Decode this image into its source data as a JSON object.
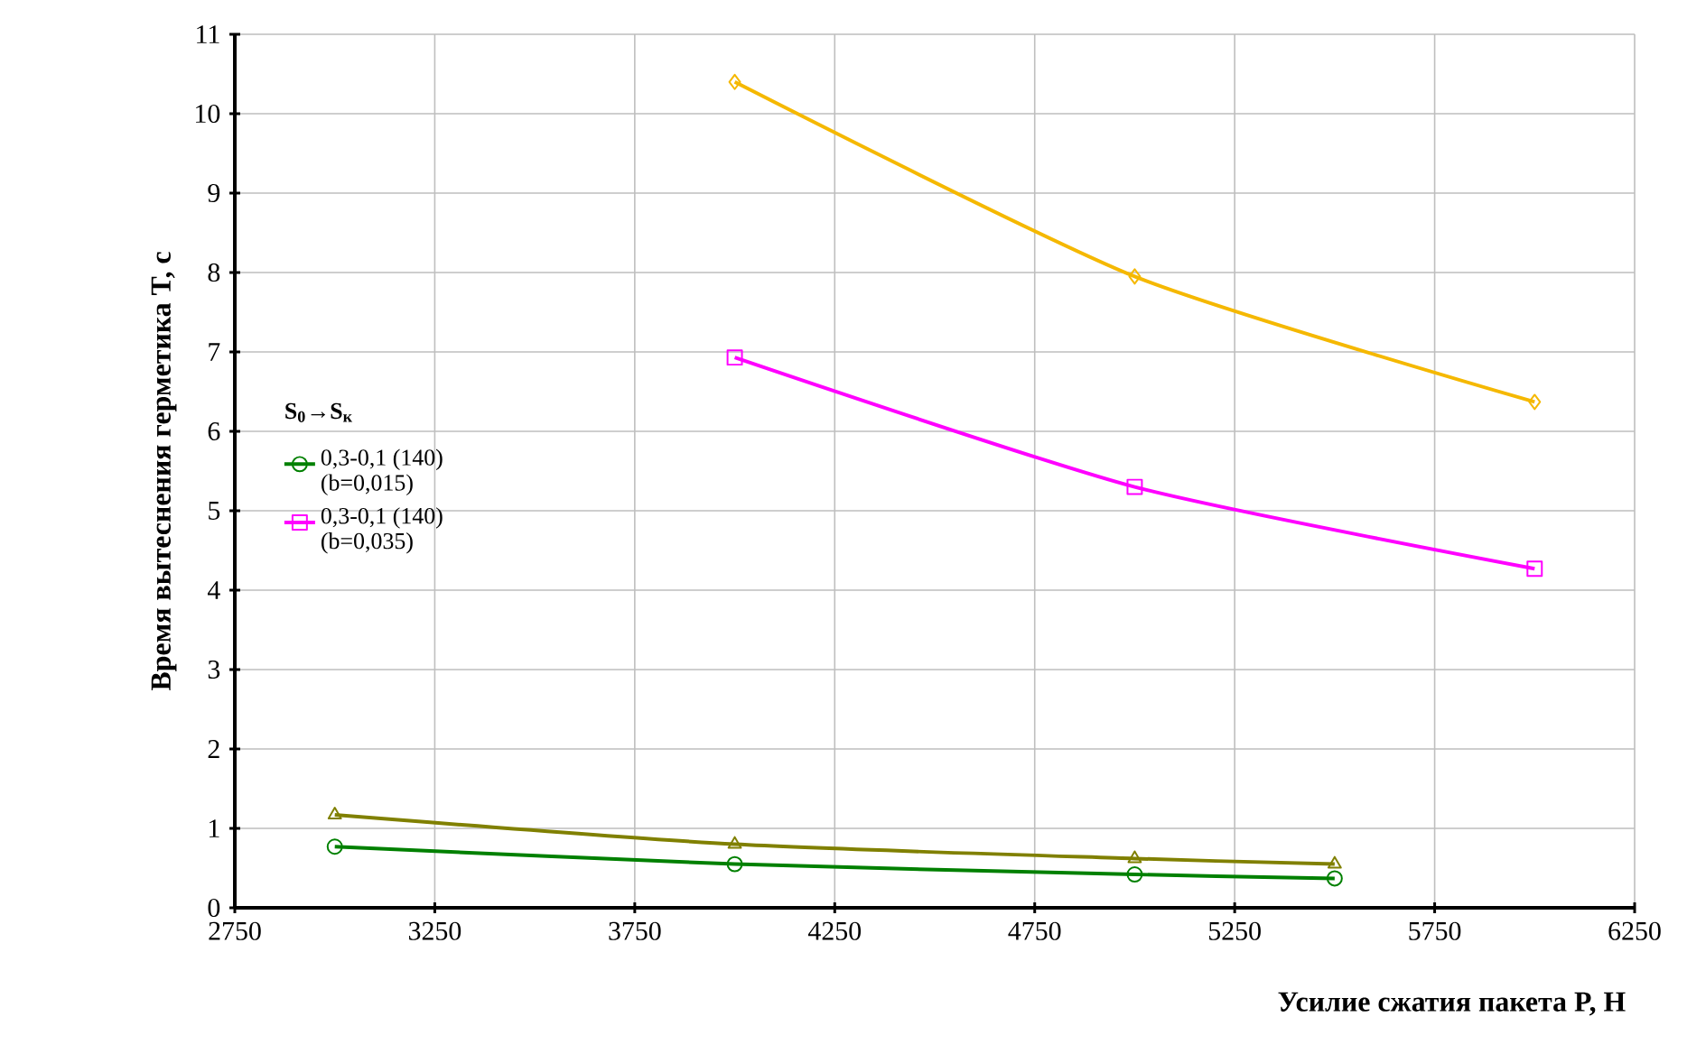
{
  "chart_data": {
    "type": "line",
    "xlabel": "Усилие сжатия пакета  P, Н",
    "ylabel": "Время вытеснения герметика T, c",
    "legend_title": "S$_{0}$→S$_{к}$",
    "legend": "left",
    "grid": true,
    "line_style": "solid",
    "xlim": [
      2750,
      6250
    ],
    "xticks": [
      2750,
      3250,
      3750,
      4250,
      4750,
      5250,
      5750,
      6250
    ],
    "ylim": [
      0,
      11
    ],
    "yticks": [
      0,
      1,
      2,
      3,
      4,
      5,
      6,
      7,
      8,
      9,
      10,
      11
    ],
    "series": [
      {
        "name": "0,3-0,1 (140) (b=0,015)",
        "color": "#008000",
        "marker": "circle",
        "x": [
          3000,
          4000,
          5000,
          5500
        ],
        "values": [
          0.77,
          0.55,
          0.42,
          0.37
        ]
      },
      {
        "name": "0,3-0,1 (140) (b=0,035)",
        "color": "#ff00ff",
        "marker": "square",
        "x": [
          4000,
          5000,
          6000
        ],
        "values": [
          6.93,
          5.3,
          4.27
        ]
      },
      {
        "color": "#808000",
        "marker": "triangle",
        "x": [
          3000,
          4000,
          5000,
          5500
        ],
        "values": [
          1.17,
          0.8,
          0.62,
          0.55
        ]
      },
      {
        "color": "#f5b800",
        "marker": "diamond",
        "x": [
          4000,
          5000,
          6000
        ],
        "values": [
          10.4,
          7.95,
          6.37
        ]
      }
    ]
  }
}
